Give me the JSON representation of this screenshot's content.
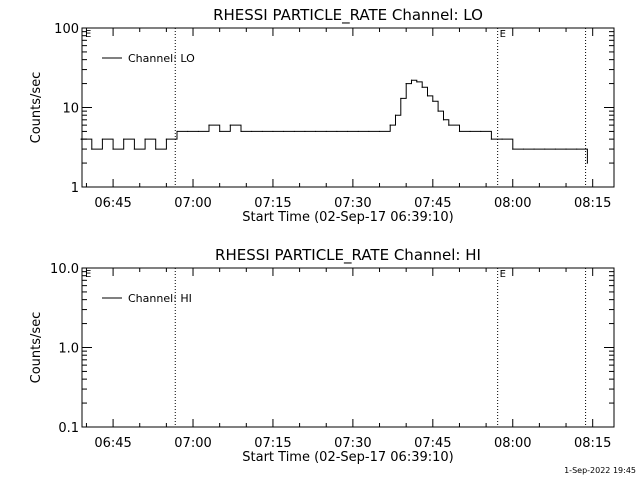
{
  "footer_timestamp": "1-Sep-2022 19:45",
  "chart_data": [
    {
      "type": "line",
      "title": "RHESSI PARTICLE_RATE Channel: LO",
      "xlabel": "Start Time (02-Sep-17 06:39:10)",
      "ylabel": "Counts/sec",
      "yscale": "log",
      "ylim": [
        1,
        100
      ],
      "xlim": [
        "06:39:10",
        "08:19:00"
      ],
      "xticks": [
        "06:45",
        "07:00",
        "07:15",
        "07:30",
        "07:45",
        "08:00",
        "08:15"
      ],
      "yticks": [
        "1",
        "10",
        "100"
      ],
      "legend": "top-left",
      "marker_label": "E",
      "event_lines": [
        "06:56:40",
        "07:57:10",
        "08:13:40"
      ],
      "series": [
        {
          "name": "Channel: LO",
          "x": [
            "06:39",
            "06:41",
            "06:43",
            "06:45",
            "06:47",
            "06:49",
            "06:51",
            "06:53",
            "06:55",
            "06:57",
            "06:59",
            "07:01",
            "07:03",
            "07:05",
            "07:07",
            "07:09",
            "07:11",
            "07:13",
            "07:15",
            "07:17",
            "07:19",
            "07:21",
            "07:23",
            "07:25",
            "07:27",
            "07:29",
            "07:31",
            "07:33",
            "07:35",
            "07:37",
            "07:38",
            "07:39",
            "07:40",
            "07:41",
            "07:42",
            "07:43",
            "07:44",
            "07:45",
            "07:46",
            "07:47",
            "07:48",
            "07:50",
            "07:52",
            "07:54",
            "07:56",
            "07:58",
            "08:00",
            "08:02",
            "08:04",
            "08:06",
            "08:08",
            "08:10",
            "08:12",
            "08:14"
          ],
          "y": [
            4,
            3,
            4,
            3,
            4,
            3,
            4,
            3,
            4,
            5,
            5,
            5,
            6,
            5,
            6,
            5,
            5,
            5,
            5,
            5,
            5,
            5,
            5,
            5,
            5,
            5,
            5,
            5,
            5,
            6,
            8,
            13,
            20,
            22,
            21,
            18,
            14,
            12,
            9,
            7,
            6,
            5,
            5,
            5,
            4,
            4,
            3,
            3,
            3,
            3,
            3,
            3,
            3,
            2
          ]
        }
      ]
    },
    {
      "type": "line",
      "title": "RHESSI PARTICLE_RATE Channel: HI",
      "xlabel": "Start Time (02-Sep-17 06:39:10)",
      "ylabel": "Counts/sec",
      "yscale": "log",
      "ylim": [
        0.1,
        10
      ],
      "xlim": [
        "06:39:10",
        "08:19:00"
      ],
      "xticks": [
        "06:45",
        "07:00",
        "07:15",
        "07:30",
        "07:45",
        "08:00",
        "08:15"
      ],
      "yticks": [
        "0.1",
        "1.0",
        "10.0"
      ],
      "legend": "top-left",
      "marker_label": "E",
      "event_lines": [
        "06:56:40",
        "07:57:10",
        "08:13:40"
      ],
      "series": [
        {
          "name": "Channel: HI",
          "x": [],
          "y": []
        }
      ]
    }
  ]
}
